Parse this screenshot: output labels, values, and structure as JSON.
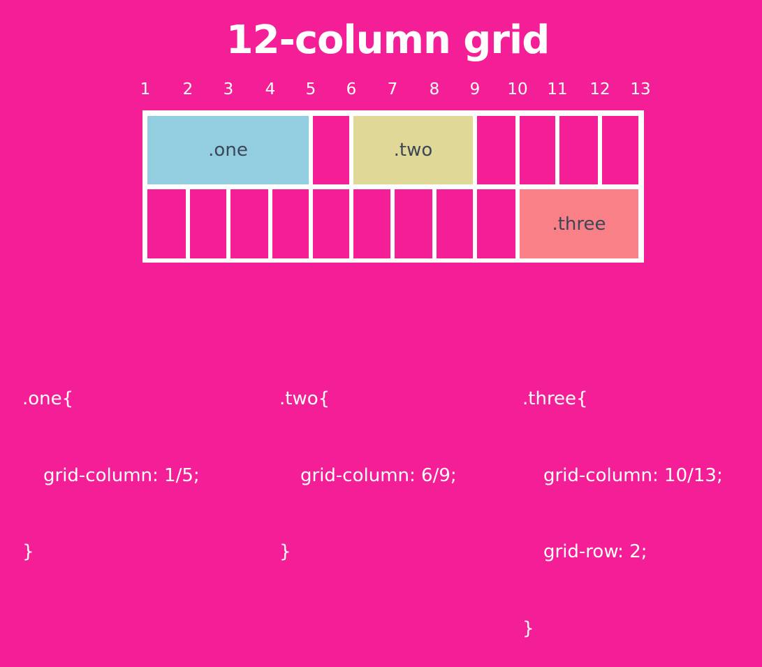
{
  "title": "12-column grid",
  "column_numbers": [
    "1",
    "2",
    "3",
    "4",
    "5",
    "6",
    "7",
    "8",
    "9",
    "10",
    "11",
    "12",
    "13"
  ],
  "items": {
    "one": {
      "label": ".one",
      "color": "#93cde0"
    },
    "two": {
      "label": ".two",
      "color": "#dfd896"
    },
    "three": {
      "label": ".three",
      "color": "#fa8088"
    }
  },
  "colors": {
    "background": "#f41f97",
    "grid_lines": "#ffffff",
    "item_text": "#3b4656"
  },
  "code": {
    "one": {
      "selector": ".one{",
      "lines": [
        "grid-column: 1/5;"
      ],
      "close": "}"
    },
    "two": {
      "selector": ".two{",
      "lines": [
        "grid-column: 6/9;"
      ],
      "close": "}"
    },
    "three": {
      "selector": ".three{",
      "lines": [
        "grid-column: 10/13;",
        "grid-row: 2;"
      ],
      "close": "}"
    }
  }
}
